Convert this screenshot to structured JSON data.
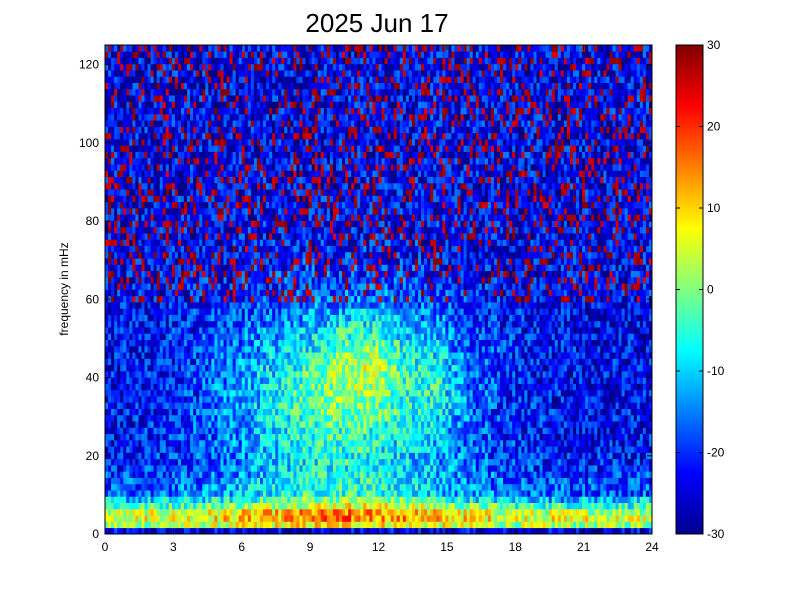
{
  "chart_data": {
    "type": "heatmap",
    "title": "2025 Jun 17",
    "xlabel": "",
    "ylabel": "frequency in mHz",
    "xlim": [
      0,
      24
    ],
    "ylim": [
      0,
      125
    ],
    "x_ticks": [
      0,
      3,
      6,
      9,
      12,
      15,
      18,
      21,
      24
    ],
    "y_ticks": [
      0,
      20,
      40,
      60,
      80,
      100,
      120
    ],
    "colorbar": {
      "colormap": "jet",
      "clim": [
        -30,
        30
      ],
      "ticks": [
        30,
        20,
        10,
        0,
        -10,
        -20,
        -30
      ]
    },
    "grid": false,
    "description_of_values": "Power spectral density: strong (10 to 30) near 1-10 mHz across the day, moderate (0 to 10) between 20-60 mHz from about hour 5 to hour 16 with a peak 35-55 mHz around hours 10-13, background (-20 to -30) above 70 mHz with scattered high speckle."
  }
}
